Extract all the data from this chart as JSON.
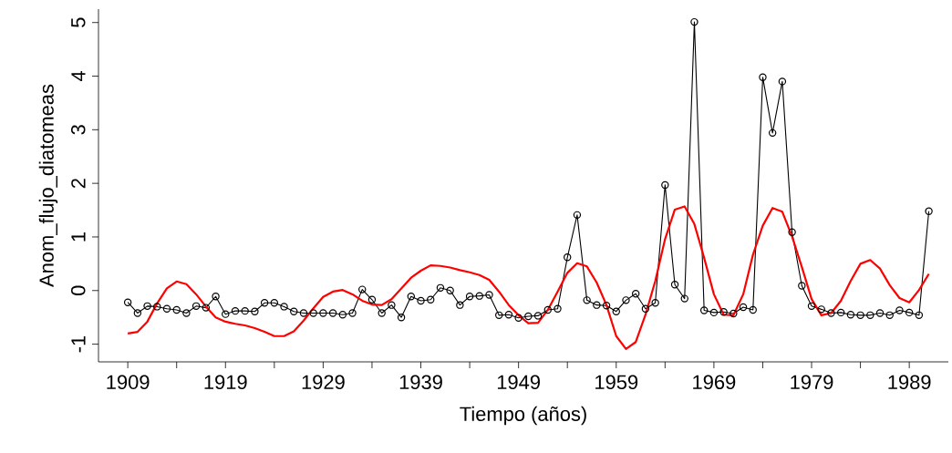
{
  "chart_data": {
    "type": "line",
    "xlabel": "Tiempo (años)",
    "ylabel": "Anom_flujo_diatomeas",
    "x": [
      1909,
      1910,
      1911,
      1912,
      1913,
      1914,
      1915,
      1916,
      1917,
      1918,
      1919,
      1920,
      1921,
      1922,
      1923,
      1924,
      1925,
      1926,
      1927,
      1928,
      1929,
      1930,
      1931,
      1932,
      1933,
      1934,
      1935,
      1936,
      1937,
      1938,
      1939,
      1940,
      1941,
      1942,
      1943,
      1944,
      1945,
      1946,
      1947,
      1948,
      1949,
      1950,
      1951,
      1952,
      1953,
      1954,
      1955,
      1956,
      1957,
      1958,
      1959,
      1960,
      1961,
      1962,
      1963,
      1964,
      1965,
      1966,
      1967,
      1968,
      1969,
      1970,
      1971,
      1972,
      1973,
      1974,
      1975,
      1976,
      1977,
      1978,
      1979,
      1980,
      1981,
      1982,
      1983,
      1984,
      1985,
      1986,
      1987,
      1988,
      1989,
      1990,
      1991
    ],
    "series": [
      {
        "color": "#000000",
        "marker": "circle",
        "values": [
          -0.22,
          -0.42,
          -0.29,
          -0.3,
          -0.34,
          -0.36,
          -0.42,
          -0.29,
          -0.32,
          -0.11,
          -0.44,
          -0.38,
          -0.38,
          -0.39,
          -0.23,
          -0.23,
          -0.3,
          -0.39,
          -0.42,
          -0.42,
          -0.42,
          -0.42,
          -0.45,
          -0.42,
          0.02,
          -0.17,
          -0.42,
          -0.27,
          -0.5,
          -0.11,
          -0.19,
          -0.17,
          0.05,
          0.0,
          -0.27,
          -0.11,
          -0.1,
          -0.08,
          -0.46,
          -0.45,
          -0.51,
          -0.48,
          -0.47,
          -0.36,
          -0.34,
          0.62,
          1.41,
          -0.18,
          -0.27,
          -0.28,
          -0.39,
          -0.18,
          -0.06,
          -0.34,
          -0.23,
          1.97,
          0.11,
          -0.15,
          5.01,
          -0.37,
          -0.41,
          -0.4,
          -0.43,
          -0.31,
          -0.36,
          3.98,
          2.94,
          3.9,
          1.09,
          0.09,
          -0.29,
          -0.35,
          -0.42,
          -0.41,
          -0.45,
          -0.46,
          -0.46,
          -0.42,
          -0.46,
          -0.37,
          -0.41,
          -0.46,
          1.48
        ]
      },
      {
        "color": "#ff0000",
        "marker": "none",
        "values": [
          -0.8,
          -0.77,
          -0.58,
          -0.24,
          0.04,
          0.17,
          0.12,
          -0.07,
          -0.3,
          -0.5,
          -0.58,
          -0.62,
          -0.65,
          -0.7,
          -0.77,
          -0.85,
          -0.85,
          -0.76,
          -0.56,
          -0.33,
          -0.12,
          -0.02,
          0.01,
          -0.07,
          -0.19,
          -0.26,
          -0.27,
          -0.16,
          0.04,
          0.24,
          0.37,
          0.47,
          0.46,
          0.43,
          0.38,
          0.34,
          0.29,
          0.2,
          -0.02,
          -0.27,
          -0.46,
          -0.61,
          -0.6,
          -0.36,
          -0.02,
          0.33,
          0.51,
          0.45,
          0.15,
          -0.27,
          -0.85,
          -1.09,
          -0.96,
          -0.45,
          0.18,
          0.96,
          1.51,
          1.57,
          1.24,
          0.61,
          -0.07,
          -0.45,
          -0.46,
          -0.07,
          0.67,
          1.21,
          1.54,
          1.47,
          1.01,
          0.44,
          -0.16,
          -0.46,
          -0.42,
          -0.19,
          0.18,
          0.5,
          0.57,
          0.41,
          0.1,
          -0.14,
          -0.22,
          0.01,
          0.31
        ]
      }
    ],
    "xlim": [
      1906,
      1993
    ],
    "ylim": [
      -1.33,
      5.25
    ],
    "xticks": [
      1909,
      {
        "value": 1914,
        "label": null
      },
      1919,
      {
        "value": 1924,
        "label": null
      },
      1929,
      {
        "value": 1934,
        "label": null
      },
      1939,
      {
        "value": 1944,
        "label": null
      },
      1949,
      {
        "value": 1954,
        "label": null
      },
      1959,
      {
        "value": 1964,
        "label": null
      },
      1969,
      {
        "value": 1974,
        "label": null
      },
      1979,
      {
        "value": 1984,
        "label": null
      },
      1989
    ],
    "yticks": [
      -1,
      0,
      1,
      2,
      3,
      4,
      5
    ]
  }
}
